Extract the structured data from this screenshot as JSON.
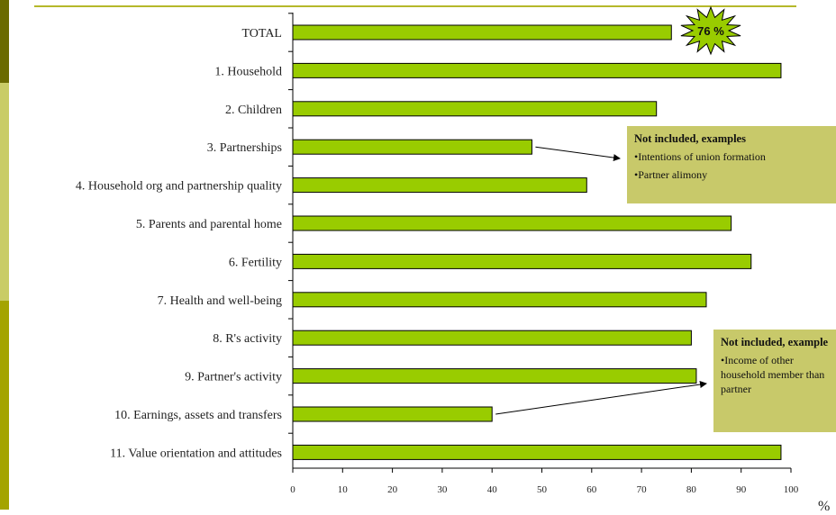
{
  "chart_data": {
    "type": "bar",
    "orientation": "horizontal",
    "categories": [
      "TOTAL",
      "1. Household",
      "2. Children",
      "3. Partnerships",
      "4. Household org and partnership quality",
      "5. Parents and parental home",
      "6. Fertility",
      "7. Health and well-being",
      "8. R's activity",
      "9. Partner's activity",
      "10. Earnings, assets and transfers",
      "11. Value orientation and attitudes"
    ],
    "values": [
      76,
      98,
      73,
      48,
      59,
      88,
      92,
      83,
      80,
      81,
      40,
      98
    ],
    "xlim": [
      0,
      100
    ],
    "xticks": [
      0,
      10,
      20,
      30,
      40,
      50,
      60,
      70,
      80,
      90,
      100
    ],
    "x_unit": "%",
    "grid": false,
    "bar_color": "#99cc00",
    "highlight": {
      "text": "76 %",
      "category": "TOTAL"
    }
  },
  "callouts": [
    {
      "title": "Not included, examples",
      "items": [
        "•Intentions of union formation",
        "•Partner alimony"
      ],
      "points_to": "3. Partnerships"
    },
    {
      "title": "Not included, example",
      "items": [
        "•Income of other household member than partner"
      ],
      "points_to": "10. Earnings, assets and transfers"
    }
  ],
  "colors": {
    "accent": "#b5b82a",
    "callout_bg": "#c8c96a",
    "bar": "#99cc00"
  }
}
